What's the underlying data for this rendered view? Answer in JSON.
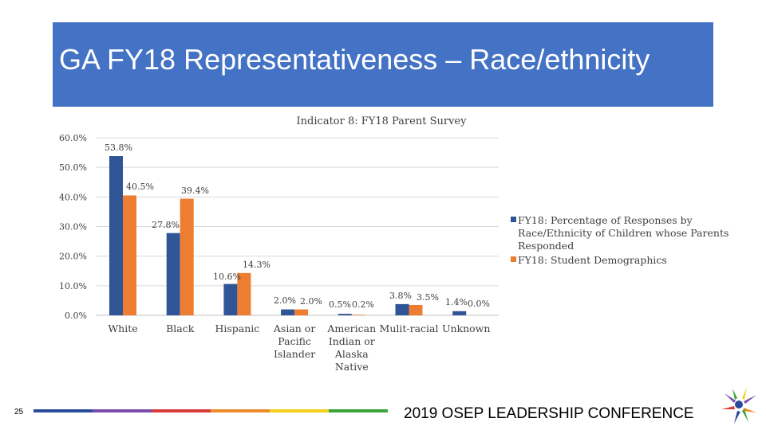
{
  "slide": {
    "title": "GA FY18 Representativeness – Race/ethnicity",
    "footer": "2019 OSEP LEADERSHIP CONFERENCE",
    "page_number": "25",
    "stripe_colors": [
      "#2a4a9b",
      "#7a4aa8",
      "#d93a3a",
      "#ee8a2a",
      "#f2d21b",
      "#3aa43a"
    ]
  },
  "chart_data": {
    "type": "bar",
    "title": "Indicator 8: FY18 Parent Survey",
    "categories": [
      [
        "White"
      ],
      [
        "Black"
      ],
      [
        "Hispanic"
      ],
      [
        "Asian or",
        "Pacific",
        "Islander"
      ],
      [
        "American",
        "Indian or",
        "Alaska",
        "Native"
      ],
      [
        "Mulit-racial"
      ],
      [
        "Unknown"
      ]
    ],
    "series": [
      {
        "name": "FY18: Percentage of Responses by Race/Ethnicity of Children whose Parents Responded",
        "legend_lines": [
          "FY18: Percentage of Responses by",
          "Race/Ethnicity of Children whose Parents",
          "Responded"
        ],
        "color": "#2f5597",
        "values": [
          53.8,
          27.8,
          10.6,
          2.0,
          0.5,
          3.8,
          1.4
        ],
        "labels": [
          "53.8%",
          "27.8%",
          "10.6%",
          "2.0%",
          "0.5%",
          "3.8%",
          "1.4%"
        ]
      },
      {
        "name": "FY18: Student Demographics",
        "legend_lines": [
          "FY18: Student Demographics"
        ],
        "color": "#ed7d31",
        "values": [
          40.5,
          39.4,
          14.3,
          2.0,
          0.2,
          3.5,
          0.0
        ],
        "labels": [
          "40.5%",
          "39.4%",
          "14.3%",
          "2.0%",
          "0.2%",
          "3.5%",
          "0.0%"
        ]
      }
    ],
    "yticks": [
      "0.0%",
      "10.0%",
      "20.0%",
      "30.0%",
      "40.0%",
      "50.0%",
      "60.0%"
    ],
    "ylim": [
      0,
      60
    ],
    "grid": true,
    "legend": "right"
  }
}
